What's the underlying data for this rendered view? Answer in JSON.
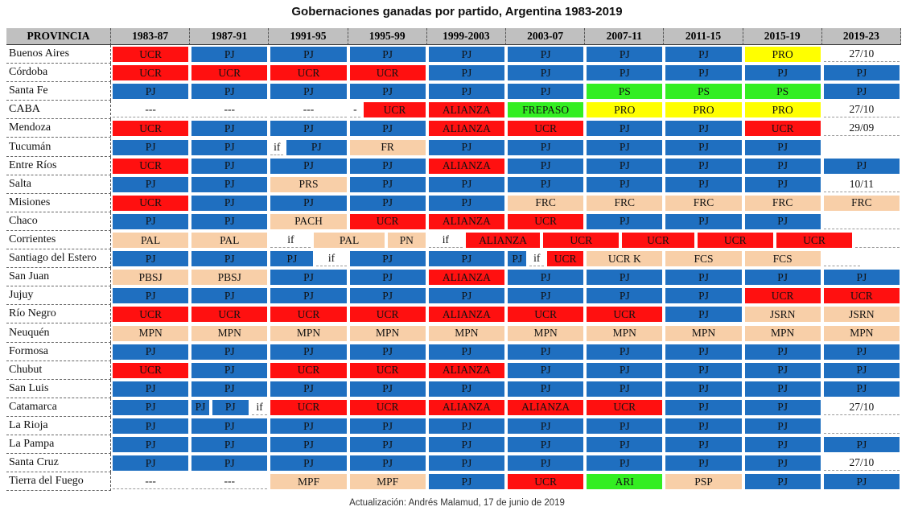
{
  "chart_data": {
    "type": "table",
    "title": "Gobernaciones ganadas por partido, Argentina 1983-2019",
    "footer": "Actualización: Andrés Malamud, 17 de junio de 2019",
    "header_label": "PROVINCIA",
    "periods": [
      "1983-87",
      "1987-91",
      "1991-95",
      "1995-99",
      "1999-2003",
      "2003-07",
      "2007-11",
      "2011-15",
      "2015-19",
      "2019-23"
    ],
    "party_colors": {
      "PJ": "#1f6fc0",
      "UCR": "#ff1010",
      "ALIANZA": "#ff1010",
      "PRO": "#ffff00",
      "PS": "#33ee22",
      "FREPASO": "#33ee22",
      "ARI": "#33ee22",
      "other": "#f8cfa8",
      "blank": "#ffffff"
    },
    "rows": [
      {
        "province": "Buenos Aires",
        "cells": [
          [
            "UCR",
            1
          ],
          [
            "PJ",
            1
          ],
          [
            "PJ",
            1
          ],
          [
            "PJ",
            1
          ],
          [
            "PJ",
            1
          ],
          [
            "PJ",
            1
          ],
          [
            "PJ",
            1
          ],
          [
            "PJ",
            1
          ],
          [
            "PRO",
            1
          ],
          [
            "27/10",
            1
          ]
        ]
      },
      {
        "province": "Córdoba",
        "cells": [
          [
            "UCR",
            1
          ],
          [
            "UCR",
            1
          ],
          [
            "UCR",
            1
          ],
          [
            "UCR",
            1
          ],
          [
            "PJ",
            1
          ],
          [
            "PJ",
            1
          ],
          [
            "PJ",
            1
          ],
          [
            "PJ",
            1
          ],
          [
            "PJ",
            1
          ],
          [
            "PJ",
            1
          ]
        ]
      },
      {
        "province": "Santa Fe",
        "cells": [
          [
            "PJ",
            1
          ],
          [
            "PJ",
            1
          ],
          [
            "PJ",
            1
          ],
          [
            "PJ",
            1
          ],
          [
            "PJ",
            1
          ],
          [
            "PJ",
            1
          ],
          [
            "PS",
            1
          ],
          [
            "PS",
            1
          ],
          [
            "PS",
            1
          ],
          [
            "PJ",
            1
          ]
        ]
      },
      {
        "province": "CABA",
        "cells": [
          [
            "---",
            1
          ],
          [
            "---",
            1
          ],
          [
            "---",
            1
          ],
          [
            "-",
            0.18
          ],
          [
            "UCR",
            0.82
          ],
          [
            "ALIANZA",
            1
          ],
          [
            "FREPASO",
            1
          ],
          [
            "PRO",
            1
          ],
          [
            "PRO",
            1
          ],
          [
            "PRO",
            1
          ],
          [
            "27/10",
            1
          ]
        ]
      },
      {
        "province": "Mendoza",
        "cells": [
          [
            "UCR",
            1
          ],
          [
            "PJ",
            1
          ],
          [
            "PJ",
            1
          ],
          [
            "PJ",
            1
          ],
          [
            "ALIANZA",
            1
          ],
          [
            "UCR",
            1
          ],
          [
            "PJ",
            1
          ],
          [
            "PJ",
            1
          ],
          [
            "UCR",
            1
          ],
          [
            "29/09",
            1
          ]
        ]
      },
      {
        "province": "Tucumán",
        "cells": [
          [
            "PJ",
            1
          ],
          [
            "PJ",
            1
          ],
          [
            "if",
            0.2
          ],
          [
            "PJ",
            0.8
          ],
          [
            "FR",
            1
          ],
          [
            "PJ",
            1
          ],
          [
            "PJ",
            1
          ],
          [
            "PJ",
            1
          ],
          [
            "PJ",
            1
          ],
          [
            "PJ",
            1
          ]
        ]
      },
      {
        "province": "Entre Ríos",
        "cells": [
          [
            "UCR",
            1
          ],
          [
            "PJ",
            1
          ],
          [
            "PJ",
            1
          ],
          [
            "PJ",
            1
          ],
          [
            "ALIANZA",
            1
          ],
          [
            "PJ",
            1
          ],
          [
            "PJ",
            1
          ],
          [
            "PJ",
            1
          ],
          [
            "PJ",
            1
          ],
          [
            "PJ",
            1
          ]
        ]
      },
      {
        "province": "Salta",
        "cells": [
          [
            "PJ",
            1
          ],
          [
            "PJ",
            1
          ],
          [
            "PRS",
            1
          ],
          [
            "PJ",
            1
          ],
          [
            "PJ",
            1
          ],
          [
            "PJ",
            1
          ],
          [
            "PJ",
            1
          ],
          [
            "PJ",
            1
          ],
          [
            "PJ",
            1
          ],
          [
            "10/11",
            1
          ]
        ]
      },
      {
        "province": "Misiones",
        "cells": [
          [
            "UCR",
            1
          ],
          [
            "PJ",
            1
          ],
          [
            "PJ",
            1
          ],
          [
            "PJ",
            1
          ],
          [
            "PJ",
            1
          ],
          [
            "FRC",
            1
          ],
          [
            "FRC",
            1
          ],
          [
            "FRC",
            1
          ],
          [
            "FRC",
            1
          ],
          [
            "FRC",
            1
          ]
        ]
      },
      {
        "province": "Chaco",
        "cells": [
          [
            "PJ",
            1
          ],
          [
            "PJ",
            1
          ],
          [
            "PACH",
            1
          ],
          [
            "UCR",
            1
          ],
          [
            "ALIANZA",
            1
          ],
          [
            "UCR",
            1
          ],
          [
            "PJ",
            1
          ],
          [
            "PJ",
            1
          ],
          [
            "PJ",
            1
          ],
          [
            "",
            1
          ]
        ]
      },
      {
        "province": "Corrientes",
        "cells": [
          [
            "PAL",
            1
          ],
          [
            "PAL",
            1
          ],
          [
            "if",
            0.55
          ],
          [
            "PAL",
            0.93
          ],
          [
            "PN",
            0.52
          ],
          [
            "if",
            0.47
          ],
          [
            "ALIANZA",
            0.98
          ],
          [
            "UCR",
            1
          ],
          [
            "UCR",
            0.95
          ],
          [
            "UCR",
            1
          ],
          [
            "UCR",
            1
          ],
          [
            "",
            0.6
          ]
        ]
      },
      {
        "province": "Santiago del Estero",
        "cells": [
          [
            "PJ",
            1
          ],
          [
            "PJ",
            1
          ],
          [
            "PJ",
            0.58
          ],
          [
            "if",
            0.42
          ],
          [
            "PJ",
            1
          ],
          [
            "PJ",
            1
          ],
          [
            "PJ",
            0.28
          ],
          [
            "if",
            0.22
          ],
          [
            "UCR",
            0.5
          ],
          [
            "UCR K",
            1
          ],
          [
            "FCS",
            1
          ],
          [
            "FCS",
            1
          ],
          [
            "",
            0.5
          ]
        ]
      },
      {
        "province": "San Juan",
        "cells": [
          [
            "PBSJ",
            1
          ],
          [
            "PBSJ",
            1
          ],
          [
            "PJ",
            1
          ],
          [
            "PJ",
            1
          ],
          [
            "ALIANZA",
            1
          ],
          [
            "PJ",
            1
          ],
          [
            "PJ",
            1
          ],
          [
            "PJ",
            1
          ],
          [
            "PJ",
            1
          ],
          [
            "PJ",
            1
          ]
        ]
      },
      {
        "province": "Jujuy",
        "cells": [
          [
            "PJ",
            1
          ],
          [
            "PJ",
            1
          ],
          [
            "PJ",
            1
          ],
          [
            "PJ",
            1
          ],
          [
            "PJ",
            1
          ],
          [
            "PJ",
            1
          ],
          [
            "PJ",
            1
          ],
          [
            "PJ",
            1
          ],
          [
            "UCR",
            1
          ],
          [
            "UCR",
            1
          ]
        ]
      },
      {
        "province": "Río Negro",
        "cells": [
          [
            "UCR",
            1
          ],
          [
            "UCR",
            1
          ],
          [
            "UCR",
            1
          ],
          [
            "UCR",
            1
          ],
          [
            "ALIANZA",
            1
          ],
          [
            "UCR",
            1
          ],
          [
            "UCR",
            1
          ],
          [
            "PJ",
            1
          ],
          [
            "JSRN",
            1
          ],
          [
            "JSRN",
            1
          ]
        ]
      },
      {
        "province": "Neuquén",
        "cells": [
          [
            "MPN",
            1
          ],
          [
            "MPN",
            1
          ],
          [
            "MPN",
            1
          ],
          [
            "MPN",
            1
          ],
          [
            "MPN",
            1
          ],
          [
            "MPN",
            1
          ],
          [
            "MPN",
            1
          ],
          [
            "MPN",
            1
          ],
          [
            "MPN",
            1
          ],
          [
            "MPN",
            1
          ]
        ]
      },
      {
        "province": "Formosa",
        "cells": [
          [
            "PJ",
            1
          ],
          [
            "PJ",
            1
          ],
          [
            "PJ",
            1
          ],
          [
            "PJ",
            1
          ],
          [
            "PJ",
            1
          ],
          [
            "PJ",
            1
          ],
          [
            "PJ",
            1
          ],
          [
            "PJ",
            1
          ],
          [
            "PJ",
            1
          ],
          [
            "PJ",
            1
          ]
        ]
      },
      {
        "province": "Chubut",
        "cells": [
          [
            "UCR",
            1
          ],
          [
            "PJ",
            1
          ],
          [
            "UCR",
            1
          ],
          [
            "UCR",
            1
          ],
          [
            "ALIANZA",
            1
          ],
          [
            "PJ",
            1
          ],
          [
            "PJ",
            1
          ],
          [
            "PJ",
            1
          ],
          [
            "PJ",
            1
          ],
          [
            "PJ",
            1
          ]
        ]
      },
      {
        "province": "San Luis",
        "cells": [
          [
            "PJ",
            1
          ],
          [
            "PJ",
            1
          ],
          [
            "PJ",
            1
          ],
          [
            "PJ",
            1
          ],
          [
            "PJ",
            1
          ],
          [
            "PJ",
            1
          ],
          [
            "PJ",
            1
          ],
          [
            "PJ",
            1
          ],
          [
            "PJ",
            1
          ],
          [
            "PJ",
            1
          ]
        ]
      },
      {
        "province": "Catamarca",
        "cells": [
          [
            "PJ",
            1
          ],
          [
            "PJ",
            0.26
          ],
          [
            "PJ",
            0.5
          ],
          [
            "if",
            0.24
          ],
          [
            "UCR",
            1
          ],
          [
            "UCR",
            1
          ],
          [
            "ALIANZA",
            1
          ],
          [
            "ALIANZA",
            1
          ],
          [
            "UCR",
            1
          ],
          [
            "PJ",
            1
          ],
          [
            "PJ",
            1
          ],
          [
            "27/10",
            1
          ]
        ]
      },
      {
        "province": "La Rioja",
        "cells": [
          [
            "PJ",
            1
          ],
          [
            "PJ",
            1
          ],
          [
            "PJ",
            1
          ],
          [
            "PJ",
            1
          ],
          [
            "PJ",
            1
          ],
          [
            "PJ",
            1
          ],
          [
            "PJ",
            1
          ],
          [
            "PJ",
            1
          ],
          [
            "PJ",
            1
          ],
          [
            "",
            1
          ]
        ]
      },
      {
        "province": "La Pampa",
        "cells": [
          [
            "PJ",
            1
          ],
          [
            "PJ",
            1
          ],
          [
            "PJ",
            1
          ],
          [
            "PJ",
            1
          ],
          [
            "PJ",
            1
          ],
          [
            "PJ",
            1
          ],
          [
            "PJ",
            1
          ],
          [
            "PJ",
            1
          ],
          [
            "PJ",
            1
          ],
          [
            "PJ",
            1
          ]
        ]
      },
      {
        "province": "Santa Cruz",
        "cells": [
          [
            "PJ",
            1
          ],
          [
            "PJ",
            1
          ],
          [
            "PJ",
            1
          ],
          [
            "PJ",
            1
          ],
          [
            "PJ",
            1
          ],
          [
            "PJ",
            1
          ],
          [
            "PJ",
            1
          ],
          [
            "PJ",
            1
          ],
          [
            "PJ",
            1
          ],
          [
            "27/10",
            1
          ]
        ]
      },
      {
        "province": "Tierra del Fuego",
        "cells": [
          [
            "---",
            1
          ],
          [
            "---",
            1
          ],
          [
            "MPF",
            1
          ],
          [
            "MPF",
            1
          ],
          [
            "PJ",
            1
          ],
          [
            "UCR",
            1
          ],
          [
            "ARI",
            1
          ],
          [
            "PSP",
            1
          ],
          [
            "PJ",
            1
          ],
          [
            "PJ",
            1
          ]
        ]
      }
    ]
  }
}
